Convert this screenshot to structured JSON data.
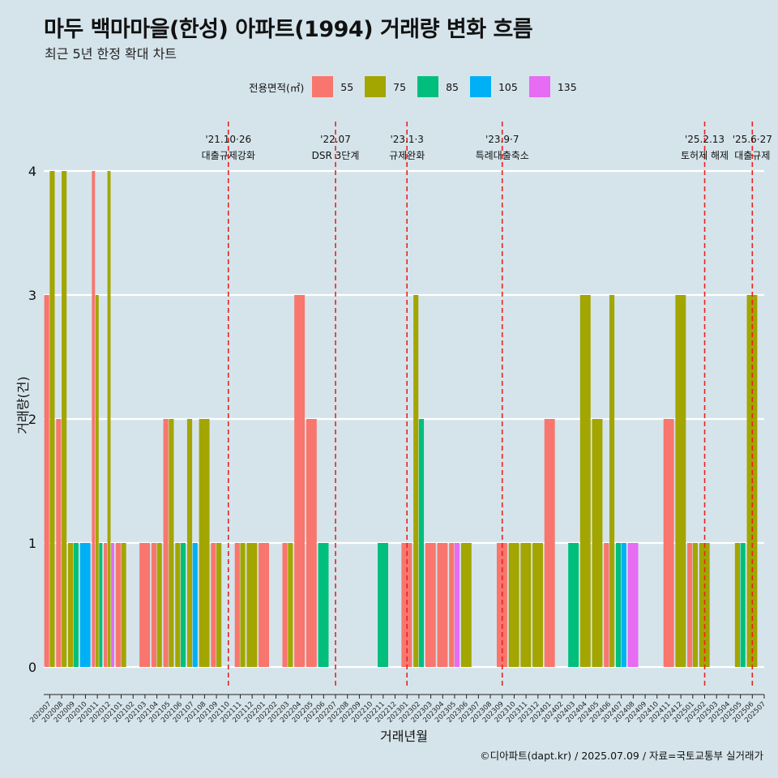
{
  "title": "마두 백마마을(한성) 아파트(1994) 거래량 변화 흐름",
  "subtitle": "최근 5년 한정 확대 차트",
  "footer": "©디아파트(dapt.kr) / 2025.07.09 / 자료=국토교통부 실거래가",
  "legend": {
    "title": "전용면적(㎡)",
    "items": [
      {
        "label": "55",
        "color": "#F8766D"
      },
      {
        "label": "75",
        "color": "#A3A500"
      },
      {
        "label": "85",
        "color": "#00BF7D"
      },
      {
        "label": "105",
        "color": "#00B0F6"
      },
      {
        "label": "135",
        "color": "#E76BF3"
      }
    ]
  },
  "chart_data": {
    "type": "bar",
    "xlabel": "거래년월",
    "ylabel": "거래량(건)",
    "ylim": [
      0,
      4
    ],
    "yticks": [
      0,
      1,
      2,
      3,
      4
    ],
    "grid": true,
    "legend_position": "top",
    "categories": [
      "202007",
      "202008",
      "202009",
      "202010",
      "202011",
      "202012",
      "202101",
      "202102",
      "202103",
      "202104",
      "202105",
      "202106",
      "202107",
      "202108",
      "202109",
      "202110",
      "202111",
      "202112",
      "202201",
      "202202",
      "202203",
      "202204",
      "202205",
      "202206",
      "202207",
      "202208",
      "202209",
      "202210",
      "202211",
      "202212",
      "202301",
      "202302",
      "202303",
      "202304",
      "202305",
      "202306",
      "202307",
      "202308",
      "202309",
      "202310",
      "202311",
      "202312",
      "202401",
      "202402",
      "202403",
      "202404",
      "202405",
      "202406",
      "202407",
      "202408",
      "202409",
      "202410",
      "202411",
      "202412",
      "202501",
      "202502",
      "202503",
      "202504",
      "202505",
      "202506",
      "202507"
    ],
    "series": [
      {
        "name": "55",
        "color": "#F8766D",
        "values": [
          3,
          2,
          0,
          0,
          4,
          1,
          1,
          0,
          1,
          1,
          2,
          0,
          0,
          0,
          1,
          0,
          1,
          0,
          1,
          0,
          1,
          3,
          2,
          0,
          0,
          0,
          0,
          0,
          0,
          0,
          1,
          0,
          1,
          1,
          1,
          0,
          0,
          0,
          1,
          0,
          0,
          0,
          2,
          0,
          0,
          0,
          0,
          1,
          0,
          0,
          0,
          0,
          2,
          0,
          1,
          0,
          0,
          0,
          0,
          0,
          0
        ]
      },
      {
        "name": "75",
        "color": "#A3A500",
        "values": [
          4,
          4,
          1,
          0,
          3,
          4,
          1,
          0,
          0,
          1,
          2,
          1,
          2,
          2,
          1,
          0,
          1,
          1,
          0,
          0,
          1,
          0,
          0,
          0,
          0,
          0,
          0,
          0,
          0,
          0,
          0,
          3,
          0,
          0,
          0,
          1,
          0,
          0,
          0,
          1,
          1,
          1,
          0,
          0,
          0,
          3,
          2,
          3,
          0,
          0,
          0,
          0,
          0,
          3,
          1,
          1,
          0,
          0,
          1,
          3,
          0
        ]
      },
      {
        "name": "85",
        "color": "#00BF7D",
        "values": [
          0,
          0,
          1,
          0,
          1,
          0,
          0,
          0,
          0,
          0,
          0,
          1,
          0,
          0,
          0,
          0,
          0,
          0,
          0,
          0,
          0,
          0,
          0,
          1,
          0,
          0,
          0,
          0,
          1,
          0,
          0,
          2,
          0,
          0,
          0,
          0,
          0,
          0,
          0,
          0,
          0,
          0,
          0,
          0,
          1,
          0,
          0,
          0,
          1,
          0,
          0,
          0,
          0,
          0,
          0,
          0,
          0,
          0,
          1,
          0,
          0
        ]
      },
      {
        "name": "105",
        "color": "#00B0F6",
        "values": [
          0,
          0,
          0,
          1,
          0,
          0,
          0,
          0,
          0,
          0,
          0,
          0,
          1,
          0,
          0,
          0,
          0,
          0,
          0,
          0,
          0,
          0,
          0,
          0,
          0,
          0,
          0,
          0,
          0,
          0,
          0,
          0,
          0,
          0,
          0,
          0,
          0,
          0,
          0,
          0,
          0,
          0,
          0,
          0,
          0,
          0,
          0,
          0,
          1,
          0,
          0,
          0,
          0,
          0,
          0,
          0,
          0,
          0,
          0,
          0,
          0
        ]
      },
      {
        "name": "135",
        "color": "#E76BF3",
        "values": [
          0,
          0,
          0,
          0,
          0,
          1,
          0,
          0,
          0,
          0,
          0,
          0,
          0,
          0,
          0,
          0,
          0,
          0,
          0,
          0,
          0,
          0,
          0,
          0,
          0,
          0,
          0,
          0,
          0,
          0,
          0,
          0,
          0,
          0,
          1,
          0,
          0,
          0,
          0,
          0,
          0,
          0,
          0,
          0,
          0,
          0,
          0,
          0,
          0,
          1,
          0,
          0,
          0,
          0,
          0,
          0,
          0,
          0,
          0,
          0,
          0
        ]
      }
    ],
    "annotations": [
      {
        "x": "202110",
        "date": "'21.10·26",
        "label": "대출규제강화"
      },
      {
        "x": "202207",
        "date": "'22.07",
        "label": "DSR 3단계"
      },
      {
        "x": "202301",
        "date": "'23.1·3",
        "label": "규제완화"
      },
      {
        "x": "202309",
        "date": "'23.9·7",
        "label": "특례대출축소"
      },
      {
        "x": "202502",
        "date": "'25.2.13",
        "label": "토허제 해제"
      },
      {
        "x": "202506",
        "date": "'25.6·27",
        "label": "대출규제"
      }
    ]
  }
}
